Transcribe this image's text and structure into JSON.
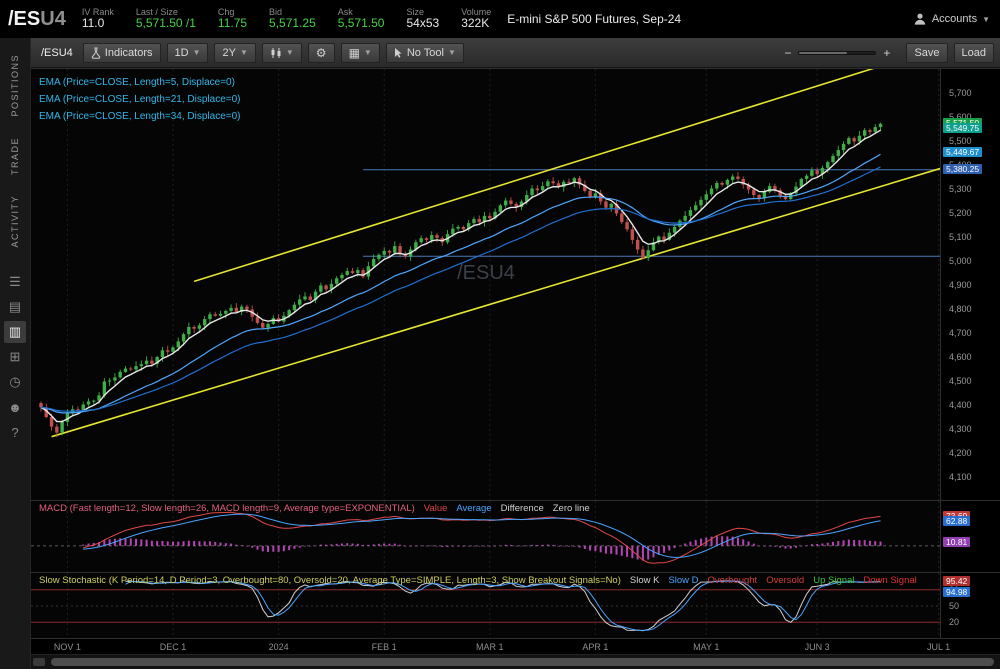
{
  "colors": {
    "accent_green": "#47d147",
    "candle_up": "#3fae49",
    "candle_down": "#c0504d",
    "ema5": "#e8e8e8",
    "ema21": "#4fa8ff",
    "ema34": "#1f6fd0",
    "trendline": "#e6e62e",
    "hline": "#4a7ab5",
    "macd_value": "#e04848",
    "macd_average": "#4aa3ff",
    "macd_hist": "#c84cc8",
    "stoch_k": "#d0d0d0",
    "stoch_d": "#4aa3ff",
    "stoch_level": "#a03030",
    "study_label": "#2fb7e8"
  },
  "header": {
    "symbol": "/ES",
    "symbol_suffix": "U4",
    "fields": [
      {
        "label": "IV Rank",
        "value": "11.0",
        "tone": "white"
      },
      {
        "label": "Last / Size",
        "value": "5,571.50 /1",
        "tone": "green"
      },
      {
        "label": "Chg",
        "value": "11.75",
        "tone": "green"
      },
      {
        "label": "Bid",
        "value": "5,571.25",
        "tone": "green"
      },
      {
        "label": "Ask",
        "value": "5,571.50",
        "tone": "green"
      },
      {
        "label": "Size",
        "value": "54x53",
        "tone": "white"
      },
      {
        "label": "Volume",
        "value": "322K",
        "tone": "white"
      }
    ],
    "description": "E-mini S&P 500 Futures, Sep-24",
    "accounts_label": "Accounts"
  },
  "sidebar": {
    "tabs": [
      {
        "id": "positions",
        "label": "POSITIONS"
      },
      {
        "id": "trade",
        "label": "TRADE"
      },
      {
        "id": "activity",
        "label": "ACTIVITY"
      }
    ],
    "icons": [
      {
        "name": "watchlist-icon",
        "glyph": "☰",
        "active": false
      },
      {
        "name": "orders-icon",
        "glyph": "▤",
        "active": false
      },
      {
        "name": "chart-icon",
        "glyph": "▥",
        "active": true
      },
      {
        "name": "apps-grid-icon",
        "glyph": "⊞",
        "active": false
      },
      {
        "name": "history-clock-icon",
        "glyph": "◷",
        "active": false
      },
      {
        "name": "community-icon",
        "glyph": "☻",
        "active": false
      },
      {
        "name": "help-icon",
        "glyph": "?",
        "active": false
      }
    ]
  },
  "toolbar": {
    "symbol": "/ESU4",
    "indicators_label": "Indicators",
    "aggregation": "1D",
    "range": "2Y",
    "tool_label": "No Tool",
    "save_label": "Save",
    "load_label": "Load"
  },
  "price_pane": {
    "study_labels": [
      "EMA (Price=CLOSE, Length=5, Displace=0)",
      "EMA (Price=CLOSE, Length=21, Displace=0)",
      "EMA (Price=CLOSE, Length=34, Displace=0)"
    ],
    "watermark": "/ESU4",
    "axis_ticks": [
      "5,700",
      "5,600",
      "5,500",
      "5,400",
      "5,300",
      "5,200",
      "5,100",
      "5,000",
      "4,900",
      "4,800",
      "4,700",
      "4,600",
      "4,500",
      "4,400",
      "4,300",
      "4,200",
      "4,100"
    ],
    "bubbles": [
      {
        "name": "last-price",
        "text": "5,571.50",
        "bg": "#18a049"
      },
      {
        "name": "ema5-value",
        "text": "5,549.75",
        "bg": "#0f9f8f"
      },
      {
        "name": "ema21-value",
        "text": "5,449.67",
        "bg": "#1f8fd0"
      },
      {
        "name": "hline-value",
        "text": "5,380.25",
        "bg": "#2f5fb0"
      }
    ]
  },
  "macd_panel": {
    "title": "MACD (Fast length=12, Slow length=26, MACD length=9, Average type=EXPONENTIAL)",
    "title_color": "#e06080",
    "legend": [
      {
        "label": "Value",
        "color": "#e04848"
      },
      {
        "label": "Average",
        "color": "#4aa3ff"
      },
      {
        "label": "Difference",
        "color": "#cfcfcf"
      },
      {
        "label": "Zero line",
        "color": "#cfcfcf"
      }
    ]
  },
  "stoch_panel": {
    "title": "Slow Stochastic (K Period=14, D Period=3, Overbought=80, Oversold=20, Average Type=SIMPLE, Length=3, Show Breakout Signals=No)",
    "title_color": "#cfcf60",
    "legend": [
      {
        "label": "Slow K",
        "color": "#cfcfcf"
      },
      {
        "label": "Slow D",
        "color": "#4aa3ff"
      },
      {
        "label": "Overbought",
        "color": "#d04040"
      },
      {
        "label": "Oversold",
        "color": "#d04040"
      },
      {
        "label": "Up Signal",
        "color": "#3cc43c"
      },
      {
        "label": "Down Signal",
        "color": "#e03030"
      }
    ],
    "axis_labels": [
      {
        "text": "80",
        "level": 80
      },
      {
        "text": "50",
        "level": 50
      },
      {
        "text": "20",
        "level": 20
      }
    ]
  },
  "time_axis": {
    "ticks": [
      {
        "label": "NOV 1",
        "bar": 5
      },
      {
        "label": "DEC 1",
        "bar": 25
      },
      {
        "label": "2024",
        "bar": 45
      },
      {
        "label": "FEB 1",
        "bar": 65
      },
      {
        "label": "MAR 1",
        "bar": 85
      },
      {
        "label": "APR 1",
        "bar": 105
      },
      {
        "label": "MAY 1",
        "bar": 126
      },
      {
        "label": "JUN 3",
        "bar": 147
      },
      {
        "label": "JUL 1",
        "bar": 170
      }
    ]
  },
  "chart_data": {
    "type": "candlestick",
    "title": "/ESU4 E-mini S&P 500 Futures, Sep-24",
    "aggregation": "1D",
    "range_shown": "Nov 2023 - Jul 2024 (2Y chart, zoomed)",
    "y_range": [
      4000,
      5800
    ],
    "last_price": 5571.5,
    "closes": [
      4390,
      4350,
      4310,
      4285,
      4330,
      4365,
      4382,
      4378,
      4402,
      4415,
      4418,
      4440,
      4498,
      4502,
      4515,
      4538,
      4552,
      4548,
      4562,
      4570,
      4585,
      4572,
      4600,
      4628,
      4622,
      4640,
      4665,
      4695,
      4725,
      4718,
      4732,
      4758,
      4778,
      4772,
      4780,
      4792,
      4805,
      4788,
      4810,
      4798,
      4768,
      4742,
      4722,
      4738,
      4762,
      4748,
      4772,
      4795,
      4818,
      4840,
      4852,
      4838,
      4872,
      4898,
      4882,
      4905,
      4928,
      4942,
      4958,
      4950,
      4962,
      4935,
      4978,
      5008,
      5026,
      5042,
      5035,
      5062,
      5030,
      5018,
      5048,
      5078,
      5095,
      5088,
      5108,
      5096,
      5078,
      5112,
      5135,
      5142,
      5132,
      5158,
      5175,
      5162,
      5188,
      5178,
      5205,
      5232,
      5252,
      5238,
      5225,
      5248,
      5275,
      5302,
      5295,
      5312,
      5332,
      5324,
      5308,
      5330,
      5328,
      5345,
      5318,
      5292,
      5268,
      5282,
      5248,
      5222,
      5238,
      5198,
      5162,
      5132,
      5088,
      5048,
      5012,
      5045,
      5078,
      5102,
      5088,
      5118,
      5142,
      5168,
      5188,
      5212,
      5232,
      5255,
      5278,
      5302,
      5325,
      5318,
      5338,
      5352,
      5342,
      5318,
      5298,
      5275,
      5262,
      5288,
      5312,
      5295,
      5272,
      5258,
      5282,
      5310,
      5342,
      5355,
      5378,
      5362,
      5388,
      5412,
      5438,
      5462,
      5488,
      5512,
      5498,
      5522,
      5545,
      5538,
      5558,
      5571.5
    ],
    "overlays": [
      {
        "type": "EMA",
        "length": 5
      },
      {
        "type": "EMA",
        "length": 21
      },
      {
        "type": "EMA",
        "length": 34
      }
    ],
    "trendlines": [
      {
        "from_bar": 2,
        "from_price": 4268,
        "to_bar": 171,
        "to_price": 5390,
        "color": "#e6e62e"
      },
      {
        "from_bar": 29,
        "from_price": 4915,
        "to_bar": 158,
        "to_price": 5805,
        "color": "#e6e62e"
      }
    ],
    "hlines": [
      {
        "price": 5380.25,
        "from_bar": 61
      },
      {
        "price": 5020.0,
        "from_bar": 61
      }
    ],
    "lower_studies": [
      {
        "type": "MACD",
        "fast": 12,
        "slow": 26,
        "signal": 9,
        "average_type": "EXPONENTIAL"
      },
      {
        "type": "SlowStochastic",
        "k_period": 14,
        "d_period": 3,
        "overbought": 80,
        "oversold": 20,
        "average_type": "SIMPLE",
        "length": 3
      }
    ],
    "total_slots": 172
  }
}
